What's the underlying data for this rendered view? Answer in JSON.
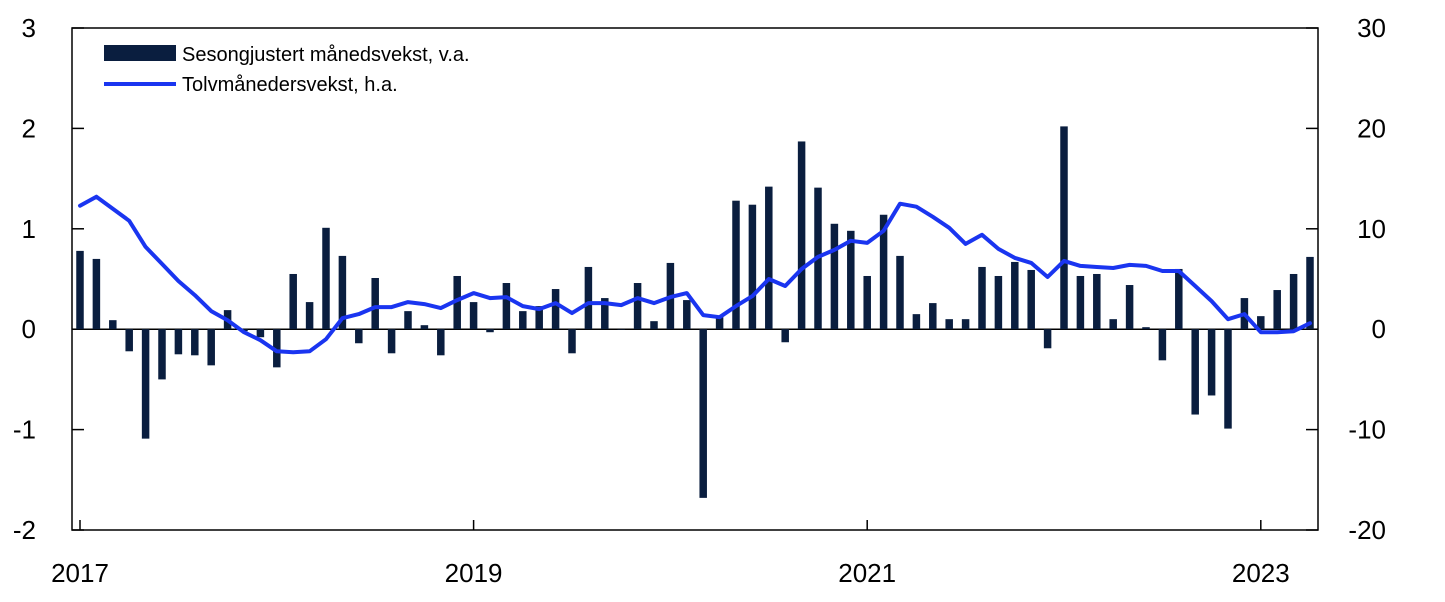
{
  "chart_data": {
    "type": "bar+line",
    "left_axis": {
      "range": [
        -2,
        3
      ],
      "ticks": [
        "-2",
        "-1",
        "0",
        "1",
        "2",
        "3"
      ]
    },
    "right_axis": {
      "range": [
        -20,
        30
      ],
      "ticks": [
        "-20",
        "-10",
        "0",
        "10",
        "20",
        "30"
      ]
    },
    "x_axis": {
      "start": "2017-01",
      "end": "2023-04",
      "tick_labels": [
        "2017",
        "2019",
        "2021",
        "2023"
      ]
    },
    "legend": {
      "position": "top-left",
      "items": [
        {
          "name": "Sesongjustert månedsvekst, v.a.",
          "kind": "bar",
          "color": "#0a1e3f"
        },
        {
          "name": "Tolvmånedersvekst, h.a.",
          "kind": "line",
          "color": "#1a35f0"
        }
      ]
    },
    "grid": false,
    "series": [
      {
        "name": "Sesongjustert månedsvekst, v.a.",
        "axis": "left",
        "type": "bar",
        "start": "2017-01",
        "values": [
          0.78,
          0.7,
          0.09,
          -0.22,
          -1.09,
          -0.5,
          -0.25,
          -0.26,
          -0.36,
          0.19,
          -0.02,
          -0.08,
          -0.38,
          0.55,
          0.27,
          1.01,
          0.73,
          -0.14,
          0.51,
          -0.24,
          0.18,
          0.04,
          -0.26,
          0.53,
          0.27,
          -0.03,
          0.46,
          0.18,
          0.23,
          0.4,
          -0.24,
          0.62,
          0.31,
          0.0,
          0.46,
          0.08,
          0.66,
          0.29,
          -1.68,
          0.12,
          1.28,
          1.24,
          1.42,
          -0.13,
          1.87,
          1.41,
          1.05,
          0.98,
          0.53,
          1.14,
          0.73,
          0.15,
          0.26,
          0.1,
          0.1,
          0.62,
          0.53,
          0.67,
          0.59,
          -0.19,
          2.02,
          0.53,
          0.55,
          0.1,
          0.44,
          0.02,
          -0.31,
          0.6,
          -0.85,
          -0.66,
          -0.99,
          0.31,
          0.13,
          0.39,
          0.55,
          0.72
        ]
      },
      {
        "name": "Tolvmånedersvekst, h.a.",
        "axis": "right",
        "type": "line",
        "start": "2017-01",
        "values": [
          12.3,
          13.2,
          12.0,
          10.8,
          8.2,
          6.5,
          4.8,
          3.4,
          1.8,
          0.9,
          -0.3,
          -1.1,
          -2.2,
          -2.3,
          -2.2,
          -1.0,
          1.1,
          1.5,
          2.2,
          2.2,
          2.7,
          2.5,
          2.1,
          2.9,
          3.6,
          3.1,
          3.2,
          2.3,
          2.0,
          2.6,
          1.6,
          2.6,
          2.6,
          2.4,
          3.1,
          2.6,
          3.2,
          3.6,
          1.4,
          1.2,
          2.3,
          3.3,
          5.0,
          4.3,
          6.0,
          7.2,
          7.9,
          8.8,
          8.6,
          9.8,
          12.5,
          12.2,
          11.2,
          10.1,
          8.5,
          9.4,
          8.0,
          7.1,
          6.6,
          5.2,
          6.8,
          6.3,
          6.2,
          6.1,
          6.4,
          6.3,
          5.8,
          5.8,
          4.3,
          2.8,
          1.0,
          1.5,
          -0.3,
          -0.3,
          -0.2,
          0.6
        ]
      }
    ]
  }
}
